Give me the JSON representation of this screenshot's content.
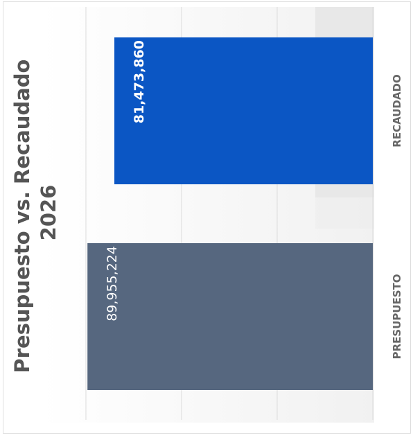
{
  "chart_data": {
    "type": "bar",
    "orientation": "rotated",
    "title_line1": "Presupuesto vs. Recaudado",
    "title_line2": "2026",
    "categories": [
      "PRESUPUESTO",
      "RECAUDADO"
    ],
    "values": [
      89955224,
      81473860
    ],
    "value_labels": [
      "89,955,224",
      "81,473,860"
    ],
    "colors": [
      "#56677f",
      "#0b56c4"
    ],
    "value_axis_range": [
      0,
      90000000
    ],
    "grid": true,
    "xlabel": "",
    "ylabel": ""
  }
}
